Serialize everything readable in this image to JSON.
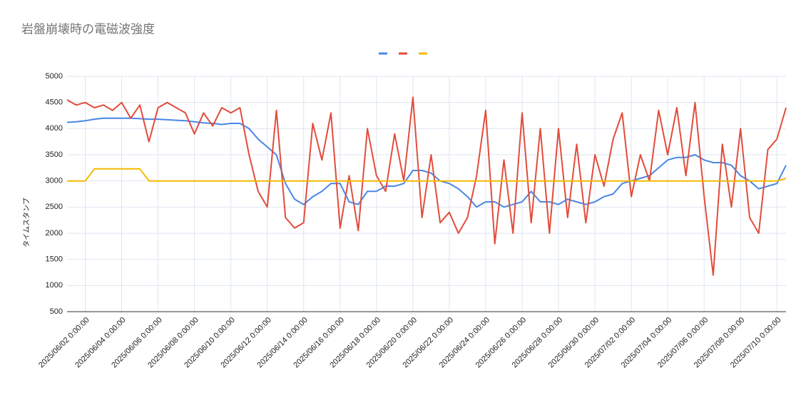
{
  "chart_data": {
    "type": "line",
    "title": "岩盤崩壊時の電磁波強度",
    "y_label": "タイムスタンプ",
    "x": [
      "2025/06/01 0:00:00",
      "2025/06/01 12:00:00",
      "2025/06/02 0:00:00",
      "2025/06/02 12:00:00",
      "2025/06/03 0:00:00",
      "2025/06/03 12:00:00",
      "2025/06/04 0:00:00",
      "2025/06/04 12:00:00",
      "2025/06/05 0:00:00",
      "2025/06/05 12:00:00",
      "2025/06/06 0:00:00",
      "2025/06/06 12:00:00",
      "2025/06/07 0:00:00",
      "2025/06/07 12:00:00",
      "2025/06/08 0:00:00",
      "2025/06/08 12:00:00",
      "2025/06/09 0:00:00",
      "2025/06/09 12:00:00",
      "2025/06/10 0:00:00",
      "2025/06/10 12:00:00",
      "2025/06/11 0:00:00",
      "2025/06/11 12:00:00",
      "2025/06/12 0:00:00",
      "2025/06/12 12:00:00",
      "2025/06/13 0:00:00",
      "2025/06/13 12:00:00",
      "2025/06/14 0:00:00",
      "2025/06/14 12:00:00",
      "2025/06/15 0:00:00",
      "2025/06/15 12:00:00",
      "2025/06/16 0:00:00",
      "2025/06/16 12:00:00",
      "2025/06/17 0:00:00",
      "2025/06/17 12:00:00",
      "2025/06/18 0:00:00",
      "2025/06/18 12:00:00",
      "2025/06/19 0:00:00",
      "2025/06/19 12:00:00",
      "2025/06/20 0:00:00",
      "2025/06/20 12:00:00",
      "2025/06/21 0:00:00",
      "2025/06/21 12:00:00",
      "2025/06/22 0:00:00",
      "2025/06/22 12:00:00",
      "2025/06/23 0:00:00",
      "2025/06/23 12:00:00",
      "2025/06/24 0:00:00",
      "2025/06/24 12:00:00",
      "2025/06/25 0:00:00",
      "2025/06/25 12:00:00",
      "2025/06/26 0:00:00",
      "2025/06/26 12:00:00",
      "2025/06/27 0:00:00",
      "2025/06/27 12:00:00",
      "2025/06/28 0:00:00",
      "2025/06/28 12:00:00",
      "2025/06/29 0:00:00",
      "2025/06/29 12:00:00",
      "2025/06/30 0:00:00",
      "2025/06/30 12:00:00",
      "2025/07/01 0:00:00",
      "2025/07/01 12:00:00",
      "2025/07/02 0:00:00",
      "2025/07/02 12:00:00",
      "2025/07/03 0:00:00",
      "2025/07/03 12:00:00",
      "2025/07/04 0:00:00",
      "2025/07/04 12:00:00",
      "2025/07/05 0:00:00",
      "2025/07/05 12:00:00",
      "2025/07/06 0:00:00",
      "2025/07/06 12:00:00",
      "2025/07/07 0:00:00",
      "2025/07/07 12:00:00",
      "2025/07/08 0:00:00",
      "2025/07/08 12:00:00",
      "2025/07/09 0:00:00",
      "2025/07/09 12:00:00",
      "2025/07/10 0:00:00",
      "2025/07/10 12:00:00"
    ],
    "series": [
      {
        "color": "#4a86e8",
        "values": [
          4120,
          4130,
          4150,
          4180,
          4200,
          4200,
          4200,
          4200,
          4190,
          4180,
          4180,
          4170,
          4160,
          4150,
          4130,
          4110,
          4100,
          4080,
          4100,
          4100,
          4000,
          3800,
          3650,
          3500,
          2950,
          2650,
          2550,
          2700,
          2800,
          2950,
          2950,
          2600,
          2550,
          2800,
          2800,
          2900,
          2900,
          2950,
          3200,
          3200,
          3150,
          3000,
          2950,
          2850,
          2700,
          2500,
          2600,
          2600,
          2500,
          2550,
          2600,
          2800,
          2600,
          2600,
          2550,
          2650,
          2600,
          2550,
          2600,
          2700,
          2750,
          2950,
          3000,
          3050,
          3100,
          3250,
          3400,
          3450,
          3450,
          3500,
          3400,
          3350,
          3350,
          3300,
          3100,
          3000,
          2850,
          2900,
          2950,
          3300
        ]
      },
      {
        "color": "#e24c3b",
        "values": [
          4550,
          4450,
          4500,
          4400,
          4450,
          4350,
          4500,
          4200,
          4450,
          3750,
          4400,
          4500,
          4400,
          4300,
          3900,
          4300,
          4050,
          4400,
          4300,
          4400,
          3500,
          2800,
          2500,
          4350,
          2300,
          2100,
          2200,
          4100,
          3400,
          4300,
          2100,
          3100,
          2050,
          4000,
          3100,
          2800,
          3900,
          3000,
          4600,
          2300,
          3500,
          2200,
          2400,
          2000,
          2300,
          3100,
          4350,
          1800,
          3400,
          2000,
          4300,
          2200,
          4000,
          2000,
          4000,
          2300,
          3700,
          2200,
          3500,
          2900,
          3800,
          4300,
          2700,
          3500,
          3000,
          4350,
          3500,
          4400,
          3100,
          4500,
          2700,
          1200,
          3700,
          2500,
          4000,
          2300,
          2000,
          3600,
          3800,
          4400
        ]
      },
      {
        "color": "#f6b800",
        "values": [
          3000,
          3000,
          3000,
          3230,
          3230,
          3230,
          3230,
          3230,
          3230,
          3000,
          3000,
          3000,
          3000,
          3000,
          3000,
          3000,
          3000,
          3000,
          3000,
          3000,
          3000,
          3000,
          3000,
          3000,
          3000,
          3000,
          3000,
          3000,
          3000,
          3000,
          3000,
          3000,
          3000,
          3000,
          3000,
          3000,
          3000,
          3000,
          3000,
          3000,
          3000,
          3000,
          3000,
          3000,
          3000,
          3000,
          3000,
          3000,
          3000,
          3000,
          3000,
          3000,
          3000,
          3000,
          3000,
          3000,
          3000,
          3000,
          3000,
          3000,
          3000,
          3000,
          3000,
          3000,
          3000,
          3000,
          3000,
          3000,
          3000,
          3000,
          3000,
          3000,
          3000,
          3000,
          3000,
          3000,
          3000,
          3000,
          3000,
          3050
        ]
      }
    ],
    "xlim": [
      "2025/06/01 0:00:00",
      "2025/07/10 12:00:00"
    ],
    "xticks": [
      "2025/06/02 0:00:00",
      "2025/06/04 0:00:00",
      "2025/06/06 0:00:00",
      "2025/06/08 0:00:00",
      "2025/06/10 0:00:00",
      "2025/06/12 0:00:00",
      "2025/06/14 0:00:00",
      "2025/06/16 0:00:00",
      "2025/06/18 0:00:00",
      "2025/06/20 0:00:00",
      "2025/06/22 0:00:00",
      "2025/06/24 0:00:00",
      "2025/06/26 0:00:00",
      "2025/06/28 0:00:00",
      "2025/06/30 0:00:00",
      "2025/07/02 0:00:00",
      "2025/07/04 0:00:00",
      "2025/07/06 0:00:00",
      "2025/07/08 0:00:00",
      "2025/07/10 0:00:00"
    ],
    "ylim": [
      500,
      5000
    ],
    "yticks": [
      500,
      1000,
      1500,
      2000,
      2500,
      3000,
      3500,
      4000,
      4500,
      5000
    ],
    "grid": true,
    "legend": "top"
  }
}
